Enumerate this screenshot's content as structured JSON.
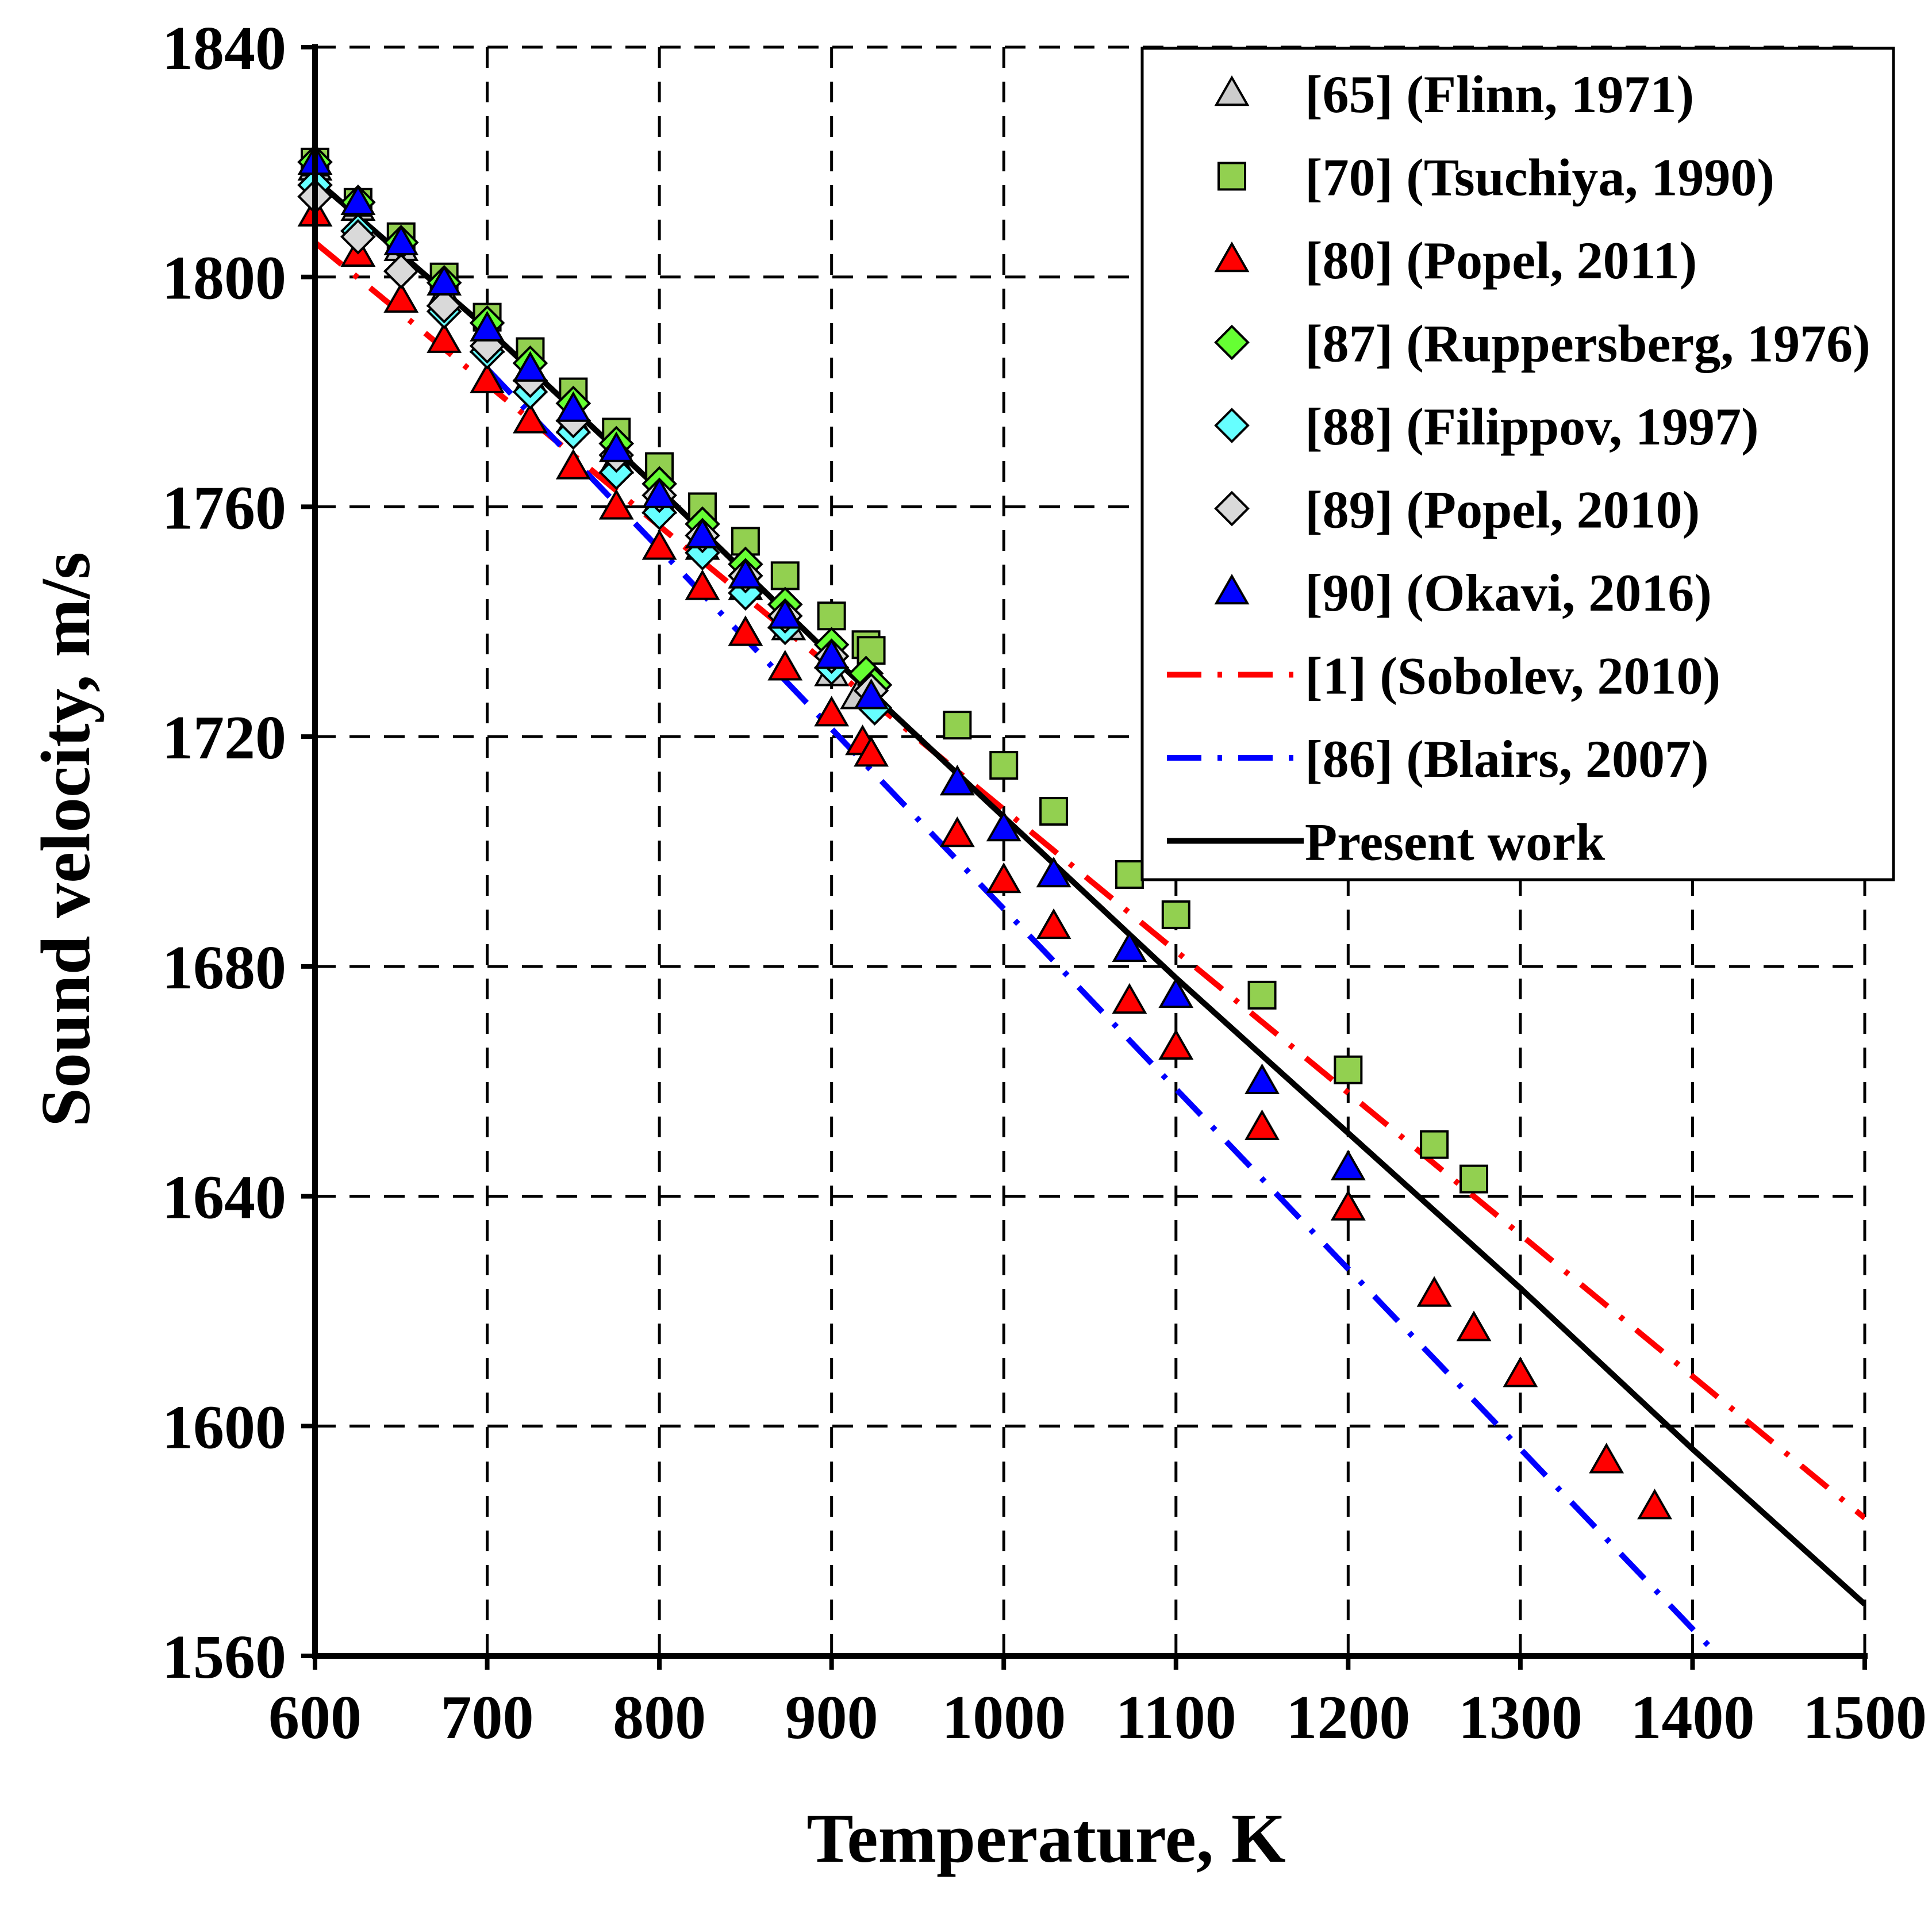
{
  "chart_data": {
    "type": "scatter",
    "title": "",
    "xlabel": "Temperature, K",
    "ylabel": "Sound velocity, m/s",
    "xlim": [
      600,
      1500
    ],
    "ylim": [
      1560,
      1840
    ],
    "x_ticks": [
      600,
      700,
      800,
      900,
      1000,
      1100,
      1200,
      1300,
      1400,
      1500
    ],
    "y_ticks": [
      1560,
      1600,
      1640,
      1680,
      1720,
      1760,
      1800,
      1840
    ],
    "grid": true,
    "legend_position": "top-right",
    "series": [
      {
        "name": "[65] (Flinn, 1971)",
        "kind": "markers",
        "marker": "triangle",
        "color": "#cccccc",
        "x": [
          600,
          625,
          650,
          675,
          700,
          725,
          750,
          775,
          800,
          825,
          850,
          875,
          900,
          915
        ],
        "y": [
          1819,
          1812,
          1805,
          1797,
          1789,
          1782,
          1775,
          1768,
          1761,
          1753,
          1746,
          1739,
          1731,
          1727
        ]
      },
      {
        "name": "[70] (Tsuchiya, 1990)",
        "kind": "markers",
        "marker": "square",
        "color": "#92d050",
        "x": [
          600,
          625,
          650,
          675,
          700,
          725,
          750,
          775,
          800,
          825,
          850,
          873,
          900,
          920,
          923,
          973,
          1000,
          1029,
          1073,
          1100,
          1150,
          1200,
          1250,
          1273
        ],
        "y": [
          1820,
          1813,
          1807,
          1800,
          1793,
          1787,
          1780,
          1773,
          1767,
          1760,
          1754,
          1748,
          1741,
          1736,
          1735,
          1722,
          1715,
          1707,
          1696,
          1689,
          1675,
          1662,
          1649,
          1643
        ]
      },
      {
        "name": "[80] (Popel, 2011)",
        "kind": "markers",
        "marker": "triangle",
        "color": "#ff0000",
        "x": [
          600,
          625,
          650,
          675,
          700,
          725,
          750,
          775,
          800,
          825,
          850,
          873,
          900,
          918,
          923,
          973,
          1000,
          1029,
          1073,
          1100,
          1150,
          1200,
          1250,
          1273,
          1300,
          1350,
          1378
        ],
        "y": [
          1811,
          1804,
          1796,
          1789,
          1782,
          1775,
          1767,
          1760,
          1753,
          1746,
          1738,
          1732,
          1724,
          1719,
          1717,
          1703,
          1695,
          1687,
          1674,
          1666,
          1652,
          1638,
          1623,
          1617,
          1609,
          1594,
          1586
        ]
      },
      {
        "name": "[87] (Ruppersberg, 1976)",
        "kind": "markers",
        "marker": "diamond",
        "color": "#66ff33",
        "x": [
          600,
          625,
          650,
          675,
          700,
          725,
          750,
          775,
          800,
          825,
          850,
          873,
          900,
          920,
          925
        ],
        "y": [
          1820,
          1813,
          1806,
          1799,
          1792,
          1785,
          1778,
          1771,
          1764,
          1757,
          1750,
          1743,
          1736,
          1731,
          1729
        ]
      },
      {
        "name": "[88] (Filippov, 1997)",
        "kind": "markers",
        "marker": "diamond",
        "color": "#66ffff",
        "x": [
          600,
          625,
          650,
          675,
          700,
          725,
          750,
          775,
          800,
          825,
          850,
          873,
          900,
          925
        ],
        "y": [
          1816,
          1808,
          1801,
          1794,
          1787,
          1780,
          1773,
          1766,
          1759,
          1752,
          1745,
          1739,
          1732,
          1725
        ]
      },
      {
        "name": "[89] (Popel, 2010)",
        "kind": "markers",
        "marker": "diamond",
        "color": "#d9d9d9",
        "x": [
          600,
          625,
          650,
          675,
          700,
          725,
          750,
          775,
          800,
          825,
          850,
          873,
          900,
          923
        ],
        "y": [
          1814,
          1807,
          1801,
          1795,
          1788,
          1782,
          1775,
          1769,
          1762,
          1755,
          1748,
          1741,
          1734,
          1728
        ]
      },
      {
        "name": "[90] (Okavi, 2016)",
        "kind": "markers",
        "marker": "triangle",
        "color": "#0000ff",
        "x": [
          600,
          625,
          650,
          675,
          700,
          725,
          750,
          775,
          800,
          825,
          850,
          873,
          900,
          923,
          973,
          1000,
          1029,
          1073,
          1100,
          1150,
          1200
        ],
        "y": [
          1820,
          1813,
          1806,
          1799,
          1791,
          1784,
          1777,
          1770,
          1762,
          1755,
          1748,
          1741,
          1734,
          1727,
          1712,
          1704,
          1696,
          1683,
          1675,
          1660,
          1645
        ]
      },
      {
        "name": "[1] (Sobolev, 2010)",
        "kind": "line",
        "dash": "dashdot",
        "color": "#ff0000",
        "x": [
          600,
          1500
        ],
        "y": [
          1806,
          1584
        ]
      },
      {
        "name": "[86] (Blairs, 2007)",
        "kind": "line",
        "dash": "dashdot",
        "color": "#0000ff",
        "x": [
          700,
          1415
        ],
        "y": [
          1784,
          1560
        ]
      },
      {
        "name": "Present work",
        "kind": "line",
        "dash": "solid",
        "color": "#000000",
        "x": [
          600,
          700,
          800,
          900,
          1000,
          1100,
          1200,
          1300,
          1400,
          1500
        ],
        "y": [
          1817,
          1791,
          1763,
          1734,
          1706,
          1678,
          1651,
          1624,
          1596,
          1569
        ]
      }
    ]
  }
}
